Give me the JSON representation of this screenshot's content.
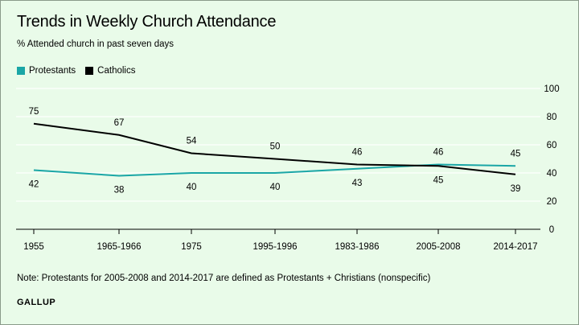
{
  "title": "Trends in Weekly Church Attendance",
  "subtitle": "% Attended church in past seven days",
  "note": "Note: Protestants for 2005-2008 and 2014-2017 are defined as Protestants + Christians (nonspecific)",
  "source": "GALLUP",
  "colors": {
    "background": "#e9fbe9",
    "protestants": "#1aa6a6",
    "catholics": "#000000",
    "grid": "#ffffff"
  },
  "chart_data": {
    "type": "line",
    "title": "Trends in Weekly Church Attendance",
    "subtitle": "% Attended church in past seven days",
    "xlabel": "",
    "ylabel": "",
    "categories": [
      "1955",
      "1965-1966",
      "1975",
      "1995-1996",
      "1983-1986",
      "2005-2008",
      "2014-2017"
    ],
    "ylim": [
      0,
      100
    ],
    "yticks": [
      0,
      20,
      40,
      60,
      80,
      100
    ],
    "grid": true,
    "legend_placement": "top-left",
    "series": [
      {
        "name": "Protestants",
        "color": "#1aa6a6",
        "values": [
          42,
          38,
          40,
          40,
          43,
          46,
          45
        ]
      },
      {
        "name": "Catholics",
        "color": "#000000",
        "values": [
          75,
          67,
          54,
          50,
          46,
          45,
          39
        ]
      }
    ]
  }
}
